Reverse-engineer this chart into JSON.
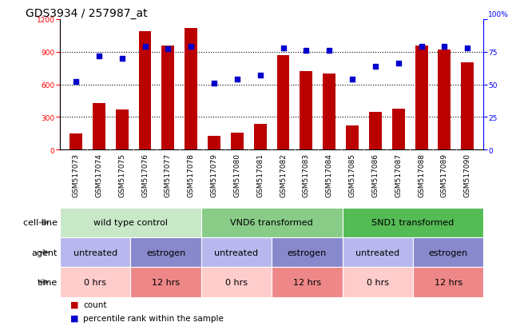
{
  "title": "GDS3934 / 257987_at",
  "samples": [
    "GSM517073",
    "GSM517074",
    "GSM517075",
    "GSM517076",
    "GSM517077",
    "GSM517078",
    "GSM517079",
    "GSM517080",
    "GSM517081",
    "GSM517082",
    "GSM517083",
    "GSM517084",
    "GSM517085",
    "GSM517086",
    "GSM517087",
    "GSM517088",
    "GSM517089",
    "GSM517090"
  ],
  "counts": [
    150,
    430,
    370,
    1090,
    960,
    1120,
    130,
    160,
    240,
    870,
    720,
    700,
    220,
    350,
    380,
    960,
    920,
    800
  ],
  "percentiles": [
    52,
    72,
    70,
    79,
    77,
    79,
    51,
    54,
    57,
    78,
    76,
    76,
    54,
    64,
    66,
    79,
    79,
    78
  ],
  "ylim_left": [
    0,
    1200
  ],
  "ylim_right": [
    0,
    100
  ],
  "yticks_left": [
    0,
    300,
    600,
    900,
    1200
  ],
  "yticks_right": [
    0,
    25,
    50,
    75,
    100
  ],
  "bar_color": "#bb0000",
  "dot_color": "#0000cc",
  "cell_line_groups": [
    {
      "label": "wild type control",
      "start": 0,
      "end": 6,
      "color": "#c8e8c8"
    },
    {
      "label": "VND6 transformed",
      "start": 6,
      "end": 12,
      "color": "#88cc88"
    },
    {
      "label": "SND1 transformed",
      "start": 12,
      "end": 18,
      "color": "#55bb55"
    }
  ],
  "agent_groups": [
    {
      "label": "untreated",
      "start": 0,
      "end": 3,
      "color": "#b8b8ee"
    },
    {
      "label": "estrogen",
      "start": 3,
      "end": 6,
      "color": "#8888cc"
    },
    {
      "label": "untreated",
      "start": 6,
      "end": 9,
      "color": "#b8b8ee"
    },
    {
      "label": "estrogen",
      "start": 9,
      "end": 12,
      "color": "#8888cc"
    },
    {
      "label": "untreated",
      "start": 12,
      "end": 15,
      "color": "#b8b8ee"
    },
    {
      "label": "estrogen",
      "start": 15,
      "end": 18,
      "color": "#8888cc"
    }
  ],
  "time_groups": [
    {
      "label": "0 hrs",
      "start": 0,
      "end": 3,
      "color": "#ffcccc"
    },
    {
      "label": "12 hrs",
      "start": 3,
      "end": 6,
      "color": "#ee8888"
    },
    {
      "label": "0 hrs",
      "start": 6,
      "end": 9,
      "color": "#ffcccc"
    },
    {
      "label": "12 hrs",
      "start": 9,
      "end": 12,
      "color": "#ee8888"
    },
    {
      "label": "0 hrs",
      "start": 12,
      "end": 15,
      "color": "#ffcccc"
    },
    {
      "label": "12 hrs",
      "start": 15,
      "end": 18,
      "color": "#ee8888"
    }
  ],
  "legend_items": [
    {
      "color": "#bb0000",
      "label": "count"
    },
    {
      "color": "#0000cc",
      "label": "percentile rank within the sample"
    }
  ],
  "bg_color": "#cccccc",
  "plot_bg": "#ffffff",
  "title_fontsize": 10,
  "tick_fontsize": 6.5,
  "anno_fontsize": 8,
  "bar_width": 0.55
}
